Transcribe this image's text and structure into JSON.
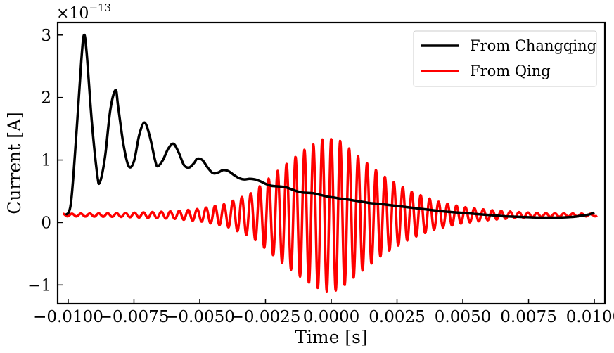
{
  "chart_data": {
    "type": "line",
    "xlabel": "Time [s]",
    "ylabel": "Current [A]",
    "y_multiplier": {
      "base": "×10",
      "exponent": "−13"
    },
    "xlim": [
      -0.0104,
      0.0104
    ],
    "ylim": [
      -1.3,
      3.2
    ],
    "x_ticks": [
      {
        "value": -0.01,
        "label": "−0.0100"
      },
      {
        "value": -0.0075,
        "label": "−0.0075"
      },
      {
        "value": -0.005,
        "label": "−0.0050"
      },
      {
        "value": -0.0025,
        "label": "−0.0025"
      },
      {
        "value": 0.0,
        "label": "0.0000"
      },
      {
        "value": 0.0025,
        "label": "0.0025"
      },
      {
        "value": 0.005,
        "label": "0.0050"
      },
      {
        "value": 0.0075,
        "label": "0.0075"
      },
      {
        "value": 0.01,
        "label": "0.0100"
      }
    ],
    "y_ticks": [
      {
        "value": -1,
        "label": "−1"
      },
      {
        "value": 0,
        "label": "0"
      },
      {
        "value": 1,
        "label": "1"
      },
      {
        "value": 2,
        "label": "2"
      },
      {
        "value": 3,
        "label": "3"
      }
    ],
    "legend_position": "top-right",
    "grid": false,
    "series": [
      {
        "name": "From Changqing",
        "color": "#000000",
        "style": "damped oscillation",
        "x": [
          -0.0101,
          -0.0099,
          -0.0097,
          -0.0095,
          -0.0094,
          -0.0093,
          -0.0091,
          -0.0089,
          -0.0088,
          -0.0086,
          -0.0084,
          -0.0082,
          -0.0081,
          -0.0079,
          -0.0077,
          -0.0075,
          -0.0073,
          -0.0071,
          -0.0069,
          -0.0067,
          -0.0066,
          -0.0064,
          -0.0062,
          -0.006,
          -0.0058,
          -0.0056,
          -0.0054,
          -0.0052,
          -0.0051,
          -0.0049,
          -0.0047,
          -0.0045,
          -0.0043,
          -0.0041,
          -0.0039,
          -0.0037,
          -0.0035,
          -0.0033,
          -0.0031,
          -0.0029,
          -0.0027,
          -0.0025,
          -0.0023,
          -0.0021,
          -0.0019,
          -0.0017,
          -0.0015,
          -0.0013,
          -0.0011,
          -0.0009,
          -0.0007,
          -0.0005,
          -0.0003,
          -0.0001,
          0.0001,
          0.0003,
          0.0006,
          0.0009,
          0.0012,
          0.0015,
          0.0018,
          0.0021,
          0.0024,
          0.0027,
          0.003,
          0.0033,
          0.0036,
          0.0039,
          0.0042,
          0.0045,
          0.0048,
          0.0051,
          0.0054,
          0.0057,
          0.006,
          0.0063,
          0.0066,
          0.0069,
          0.0072,
          0.0075,
          0.0078,
          0.0081,
          0.0084,
          0.0087,
          0.009,
          0.0093,
          0.0095,
          0.0097,
          0.0099,
          0.01
        ],
        "y": [
          0.12,
          0.3,
          1.35,
          2.6,
          3.0,
          2.72,
          1.6,
          0.78,
          0.64,
          1.05,
          1.8,
          2.12,
          1.85,
          1.25,
          0.9,
          0.98,
          1.4,
          1.6,
          1.38,
          1.0,
          0.9,
          1.0,
          1.18,
          1.26,
          1.12,
          0.92,
          0.88,
          0.96,
          1.02,
          1.0,
          0.88,
          0.79,
          0.8,
          0.84,
          0.82,
          0.76,
          0.71,
          0.69,
          0.7,
          0.69,
          0.66,
          0.62,
          0.59,
          0.58,
          0.575,
          0.56,
          0.53,
          0.5,
          0.48,
          0.475,
          0.47,
          0.45,
          0.43,
          0.41,
          0.4,
          0.385,
          0.37,
          0.35,
          0.33,
          0.31,
          0.3,
          0.285,
          0.27,
          0.255,
          0.24,
          0.225,
          0.21,
          0.195,
          0.18,
          0.17,
          0.16,
          0.15,
          0.14,
          0.13,
          0.12,
          0.11,
          0.1,
          0.095,
          0.09,
          0.085,
          0.08,
          0.078,
          0.078,
          0.08,
          0.085,
          0.095,
          0.11,
          0.12,
          0.14,
          0.16
        ]
      },
      {
        "name": "From Qing",
        "color": "#ff0000",
        "style": "modulated oscillation",
        "x_start": -0.0102,
        "x_end": 0.0101,
        "num_points": 1600,
        "baseline": 0.12,
        "period": 0.00034,
        "envelope": {
          "x": [
            -0.0102,
            -0.008,
            -0.006,
            -0.005,
            -0.004,
            -0.003,
            -0.002,
            -0.001,
            -0.0003,
            0.0,
            0.0003,
            0.001,
            0.002,
            0.003,
            0.004,
            0.005,
            0.006,
            0.007,
            0.008,
            0.0101
          ],
          "amplitude": [
            0.02,
            0.03,
            0.06,
            0.1,
            0.18,
            0.36,
            0.72,
            1.05,
            1.22,
            1.22,
            1.2,
            0.95,
            0.62,
            0.38,
            0.22,
            0.13,
            0.08,
            0.05,
            0.03,
            0.02
          ]
        }
      }
    ]
  }
}
